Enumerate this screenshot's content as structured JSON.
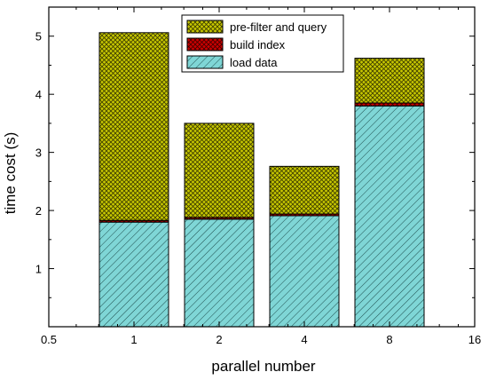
{
  "chart_data": {
    "type": "bar",
    "stacked": true,
    "xlabel": "parallel number",
    "ylabel": "time cost (s)",
    "x_scale": "log2",
    "xlim": [
      0.5,
      16
    ],
    "ylim": [
      0,
      5.5
    ],
    "x_ticks": [
      "0.5",
      "1",
      "2",
      "4",
      "8",
      "16"
    ],
    "y_ticks": [
      "1",
      "2",
      "3",
      "4",
      "5"
    ],
    "categories": [
      "1",
      "2",
      "4",
      "8"
    ],
    "series": [
      {
        "name": "load data",
        "color": "#7fd6d6",
        "pattern": "diagonal-hatch",
        "values": [
          1.8,
          1.85,
          1.91,
          3.8
        ]
      },
      {
        "name": "build index",
        "color": "#cc0000",
        "pattern": "cross-hatch",
        "values": [
          0.03,
          0.03,
          0.03,
          0.05
        ]
      },
      {
        "name": "pre-filter and query",
        "color": "#c8c800",
        "pattern": "cross-hatch",
        "values": [
          3.23,
          1.62,
          0.82,
          0.77
        ]
      }
    ],
    "legend": {
      "placement": "top-center",
      "order": [
        "pre-filter and query",
        "build index",
        "load data"
      ]
    },
    "grid": false
  }
}
